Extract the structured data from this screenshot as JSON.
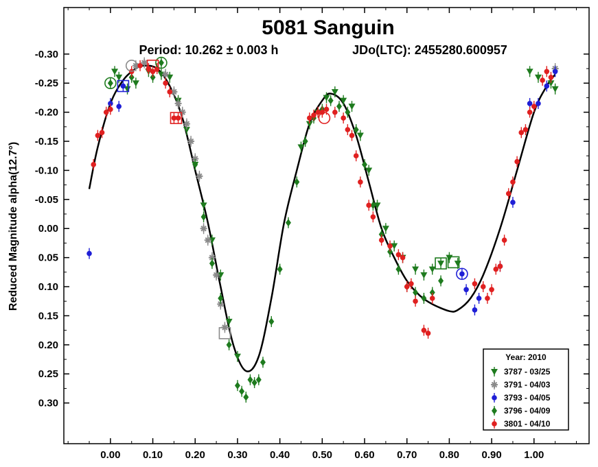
{
  "chart_data": {
    "type": "scatter",
    "title": "5081 Sanguin",
    "subtitle_period": "Period: 10.262 ± 0.003 h",
    "subtitle_epoch": "JDo(LTC): 2455280.600957",
    "xlabel": "",
    "ylabel": "Reduced Magnitude alpha(12.7°)",
    "xlim": [
      -0.11,
      1.13
    ],
    "ylim": [
      0.37,
      -0.38
    ],
    "y_inverted": true,
    "grid": false,
    "x_ticks": [
      "0.00",
      "0.10",
      "0.20",
      "0.30",
      "0.40",
      "0.50",
      "0.60",
      "0.70",
      "0.80",
      "0.90",
      "1.00"
    ],
    "y_ticks": [
      "-0.30",
      "-0.25",
      "-0.20",
      "-0.15",
      "-0.10",
      "-0.05",
      "0.00",
      "0.05",
      "0.10",
      "0.15",
      "0.20",
      "0.25",
      "0.30"
    ],
    "legend_title": "Year: 2010",
    "legend_position": "bottom-right",
    "fit_curve": {
      "name": "",
      "color": "#000000",
      "points": [
        [
          -0.05,
          -0.068
        ],
        [
          -0.03,
          -0.14
        ],
        [
          0.0,
          -0.215
        ],
        [
          0.03,
          -0.255
        ],
        [
          0.06,
          -0.275
        ],
        [
          0.08,
          -0.28
        ],
        [
          0.11,
          -0.275
        ],
        [
          0.14,
          -0.245
        ],
        [
          0.17,
          -0.19
        ],
        [
          0.2,
          -0.1
        ],
        [
          0.23,
          -0.01
        ],
        [
          0.26,
          0.1
        ],
        [
          0.29,
          0.2
        ],
        [
          0.32,
          0.245
        ],
        [
          0.35,
          0.22
        ],
        [
          0.38,
          0.12
        ],
        [
          0.41,
          -0.01
        ],
        [
          0.44,
          -0.1
        ],
        [
          0.47,
          -0.18
        ],
        [
          0.5,
          -0.22
        ],
        [
          0.52,
          -0.232
        ],
        [
          0.55,
          -0.215
        ],
        [
          0.58,
          -0.16
        ],
        [
          0.61,
          -0.08
        ],
        [
          0.64,
          0.0
        ],
        [
          0.67,
          0.05
        ],
        [
          0.7,
          0.09
        ],
        [
          0.73,
          0.115
        ],
        [
          0.76,
          0.13
        ],
        [
          0.8,
          0.142
        ],
        [
          0.82,
          0.14
        ],
        [
          0.85,
          0.12
        ],
        [
          0.88,
          0.08
        ],
        [
          0.92,
          0.0
        ],
        [
          0.96,
          -0.1
        ],
        [
          1.0,
          -0.2
        ],
        [
          1.03,
          -0.245
        ],
        [
          1.05,
          -0.265
        ]
      ]
    },
    "series": [
      {
        "name": "3787 - 03/25",
        "marker": "triangle-down",
        "color": "#1e7b1e",
        "points": [
          [
            0.01,
            -0.27
          ],
          [
            0.02,
            -0.26
          ],
          [
            0.04,
            -0.24
          ],
          [
            0.06,
            -0.25
          ],
          [
            0.09,
            -0.27
          ],
          [
            0.12,
            -0.265
          ],
          [
            0.14,
            -0.26
          ],
          [
            0.16,
            -0.22
          ],
          [
            0.18,
            -0.17
          ],
          [
            0.2,
            -0.11
          ],
          [
            0.22,
            -0.04
          ],
          [
            0.24,
            0.02
          ],
          [
            0.26,
            0.08
          ],
          [
            0.28,
            0.16
          ],
          [
            0.3,
            0.22
          ],
          [
            0.45,
            -0.14
          ],
          [
            0.47,
            -0.18
          ],
          [
            0.49,
            -0.2
          ],
          [
            0.51,
            -0.225
          ],
          [
            0.53,
            -0.235
          ],
          [
            0.55,
            -0.22
          ],
          [
            0.57,
            -0.21
          ],
          [
            0.59,
            -0.16
          ],
          [
            0.61,
            -0.1
          ],
          [
            0.63,
            -0.04
          ],
          [
            0.65,
            0.0
          ],
          [
            0.67,
            0.03
          ],
          [
            0.69,
            0.05
          ],
          [
            0.72,
            0.07
          ],
          [
            0.74,
            0.08
          ],
          [
            0.76,
            0.07
          ],
          [
            0.78,
            0.06
          ],
          [
            0.8,
            0.05
          ],
          [
            0.82,
            0.06
          ],
          [
            0.99,
            -0.27
          ],
          [
            1.01,
            -0.26
          ],
          [
            1.04,
            -0.25
          ],
          [
            1.05,
            -0.24
          ]
        ]
      },
      {
        "name": "3791 - 04/03",
        "marker": "asterisk",
        "color": "#8a8a8a",
        "points": [
          [
            0.06,
            -0.28
          ],
          [
            0.08,
            -0.285
          ],
          [
            0.13,
            -0.265
          ],
          [
            0.15,
            -0.235
          ],
          [
            0.16,
            -0.215
          ],
          [
            0.17,
            -0.2
          ],
          [
            0.18,
            -0.18
          ],
          [
            0.19,
            -0.15
          ],
          [
            0.2,
            -0.12
          ],
          [
            0.21,
            -0.09
          ],
          [
            0.22,
            0.0
          ],
          [
            0.23,
            0.02
          ],
          [
            0.24,
            0.05
          ],
          [
            0.25,
            0.08
          ],
          [
            0.26,
            0.13
          ],
          [
            0.27,
            0.17
          ],
          [
            1.05,
            -0.275
          ]
        ]
      },
      {
        "name": "3793 - 04/05",
        "marker": "circle",
        "color": "#1f1fd6",
        "points": [
          [
            -0.05,
            0.043
          ],
          [
            0.0,
            -0.215
          ],
          [
            0.02,
            -0.21
          ],
          [
            0.03,
            -0.245
          ],
          [
            0.83,
            0.078
          ],
          [
            0.84,
            0.105
          ],
          [
            0.86,
            0.14
          ],
          [
            0.87,
            0.12
          ],
          [
            0.92,
            0.065
          ],
          [
            0.95,
            -0.045
          ],
          [
            0.99,
            -0.215
          ],
          [
            1.01,
            -0.215
          ],
          [
            1.03,
            -0.245
          ],
          [
            1.05,
            -0.27
          ]
        ]
      },
      {
        "name": "3796 - 04/09",
        "marker": "diamond",
        "color": "#1e7b1e",
        "points": [
          [
            0.0,
            -0.25
          ],
          [
            0.05,
            -0.26
          ],
          [
            0.1,
            -0.26
          ],
          [
            0.12,
            -0.285
          ],
          [
            0.2,
            -0.11
          ],
          [
            0.22,
            -0.02
          ],
          [
            0.24,
            0.06
          ],
          [
            0.26,
            0.12
          ],
          [
            0.28,
            0.2
          ],
          [
            0.3,
            0.27
          ],
          [
            0.31,
            0.28
          ],
          [
            0.32,
            0.29
          ],
          [
            0.33,
            0.26
          ],
          [
            0.34,
            0.265
          ],
          [
            0.35,
            0.26
          ],
          [
            0.36,
            0.23
          ],
          [
            0.38,
            0.16
          ],
          [
            0.4,
            0.07
          ],
          [
            0.42,
            -0.01
          ],
          [
            0.44,
            -0.08
          ],
          [
            0.46,
            -0.15
          ],
          [
            0.48,
            -0.19
          ],
          [
            0.5,
            -0.205
          ],
          [
            0.52,
            -0.22
          ],
          [
            0.54,
            -0.21
          ],
          [
            0.56,
            -0.2
          ],
          [
            0.58,
            -0.17
          ],
          [
            0.6,
            -0.11
          ],
          [
            0.62,
            -0.04
          ],
          [
            0.64,
            0.01
          ],
          [
            0.66,
            0.04
          ],
          [
            0.68,
            0.07
          ],
          [
            0.7,
            0.1
          ],
          [
            0.72,
            0.11
          ],
          [
            0.74,
            0.12
          ],
          [
            0.76,
            0.11
          ],
          [
            0.78,
            0.09
          ]
        ]
      },
      {
        "name": "3801 - 04/10",
        "marker": "circle",
        "color": "#e02020",
        "points": [
          [
            -0.04,
            -0.11
          ],
          [
            -0.03,
            -0.16
          ],
          [
            -0.02,
            -0.165
          ],
          [
            -0.01,
            -0.2
          ],
          [
            0.0,
            -0.205
          ],
          [
            0.05,
            -0.27
          ],
          [
            0.07,
            -0.28
          ],
          [
            0.09,
            -0.275
          ],
          [
            0.1,
            -0.27
          ],
          [
            0.11,
            -0.275
          ],
          [
            0.13,
            -0.25
          ],
          [
            0.14,
            -0.235
          ],
          [
            0.15,
            -0.19
          ],
          [
            0.16,
            -0.19
          ],
          [
            0.47,
            -0.19
          ],
          [
            0.48,
            -0.195
          ],
          [
            0.49,
            -0.2
          ],
          [
            0.5,
            -0.2
          ],
          [
            0.51,
            -0.205
          ],
          [
            0.53,
            -0.2
          ],
          [
            0.55,
            -0.19
          ],
          [
            0.56,
            -0.17
          ],
          [
            0.57,
            -0.16
          ],
          [
            0.58,
            -0.125
          ],
          [
            0.59,
            -0.08
          ],
          [
            0.61,
            -0.04
          ],
          [
            0.62,
            -0.02
          ],
          [
            0.64,
            0.02
          ],
          [
            0.66,
            0.03
          ],
          [
            0.68,
            0.045
          ],
          [
            0.69,
            0.05
          ],
          [
            0.7,
            0.1
          ],
          [
            0.71,
            0.095
          ],
          [
            0.72,
            0.125
          ],
          [
            0.74,
            0.175
          ],
          [
            0.75,
            0.18
          ],
          [
            0.76,
            0.12
          ],
          [
            0.86,
            0.095
          ],
          [
            0.88,
            0.1
          ],
          [
            0.89,
            0.12
          ],
          [
            0.9,
            0.105
          ],
          [
            0.91,
            0.07
          ],
          [
            0.92,
            0.065
          ],
          [
            0.93,
            0.02
          ],
          [
            0.94,
            -0.06
          ],
          [
            0.95,
            -0.08
          ],
          [
            0.96,
            -0.115
          ],
          [
            0.97,
            -0.165
          ],
          [
            0.98,
            -0.17
          ],
          [
            0.99,
            -0.2
          ],
          [
            1.0,
            -0.21
          ],
          [
            1.02,
            -0.255
          ],
          [
            1.03,
            -0.27
          ],
          [
            1.04,
            -0.26
          ]
        ]
      }
    ],
    "highlights": [
      {
        "shape": "circle",
        "color": "#1e7b1e",
        "x": 0.0,
        "y": -0.25
      },
      {
        "shape": "circle",
        "color": "#8a8a8a",
        "x": 0.05,
        "y": -0.28
      },
      {
        "shape": "square",
        "color": "#1f1fd6",
        "x": 0.03,
        "y": -0.245
      },
      {
        "shape": "circle",
        "color": "#1e7b1e",
        "x": 0.12,
        "y": -0.285
      },
      {
        "shape": "square",
        "color": "#e02020",
        "x": 0.1,
        "y": -0.28
      },
      {
        "shape": "square",
        "color": "#e02020",
        "x": 0.155,
        "y": -0.19
      },
      {
        "shape": "square",
        "color": "#8a8a8a",
        "x": 0.27,
        "y": 0.18
      },
      {
        "shape": "circle",
        "color": "#e02020",
        "x": 0.505,
        "y": -0.19
      },
      {
        "shape": "square",
        "color": "#1e7b1e",
        "x": 0.78,
        "y": 0.06
      },
      {
        "shape": "square",
        "color": "#1e7b1e",
        "x": 0.81,
        "y": 0.058
      },
      {
        "shape": "circle",
        "color": "#1f1fd6",
        "x": 0.83,
        "y": 0.078
      }
    ]
  }
}
